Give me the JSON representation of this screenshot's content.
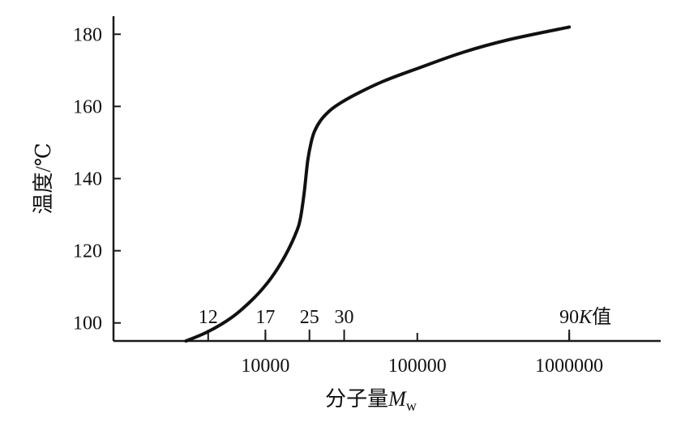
{
  "chart_data": {
    "type": "line",
    "title": "",
    "xlabel": "分子量",
    "xlabel_symbol": "M",
    "xlabel_subscript": "w",
    "ylabel": "温度/℃",
    "x_scale": "log",
    "xlim": [
      1000,
      4000000
    ],
    "ylim": [
      95,
      185
    ],
    "x_ticks": [
      10000,
      100000,
      1000000
    ],
    "x_tick_labels": [
      "10000",
      "100000",
      "1000000"
    ],
    "y_ticks": [
      100,
      120,
      140,
      160,
      180
    ],
    "y_tick_labels": [
      "100",
      "120",
      "140",
      "160",
      "180"
    ],
    "k_value_markers": [
      {
        "label": "12",
        "x": 4200
      },
      {
        "label": "17",
        "x": 10000
      },
      {
        "label": "25",
        "x": 19500
      },
      {
        "label": "30",
        "x": 33000
      },
      {
        "label": "90",
        "x": 1000000
      }
    ],
    "k_value_suffix": "K值",
    "k_value_suffix_symbol": "K",
    "k_value_suffix_text": "值",
    "series": [
      {
        "x": [
          3000,
          4200,
          6000,
          8000,
          10000,
          12000,
          14000,
          16000,
          17000,
          18000,
          19000,
          20000,
          21000,
          23000,
          26000,
          30000,
          40000,
          60000,
          100000,
          200000,
          400000,
          1000000
        ],
        "y": [
          95,
          97.6,
          101.5,
          106,
          110.4,
          115,
          119.9,
          125.2,
          129,
          136,
          145,
          150,
          153,
          156,
          158.5,
          160.5,
          163.5,
          167,
          170.5,
          175,
          178.5,
          182
        ]
      }
    ]
  }
}
